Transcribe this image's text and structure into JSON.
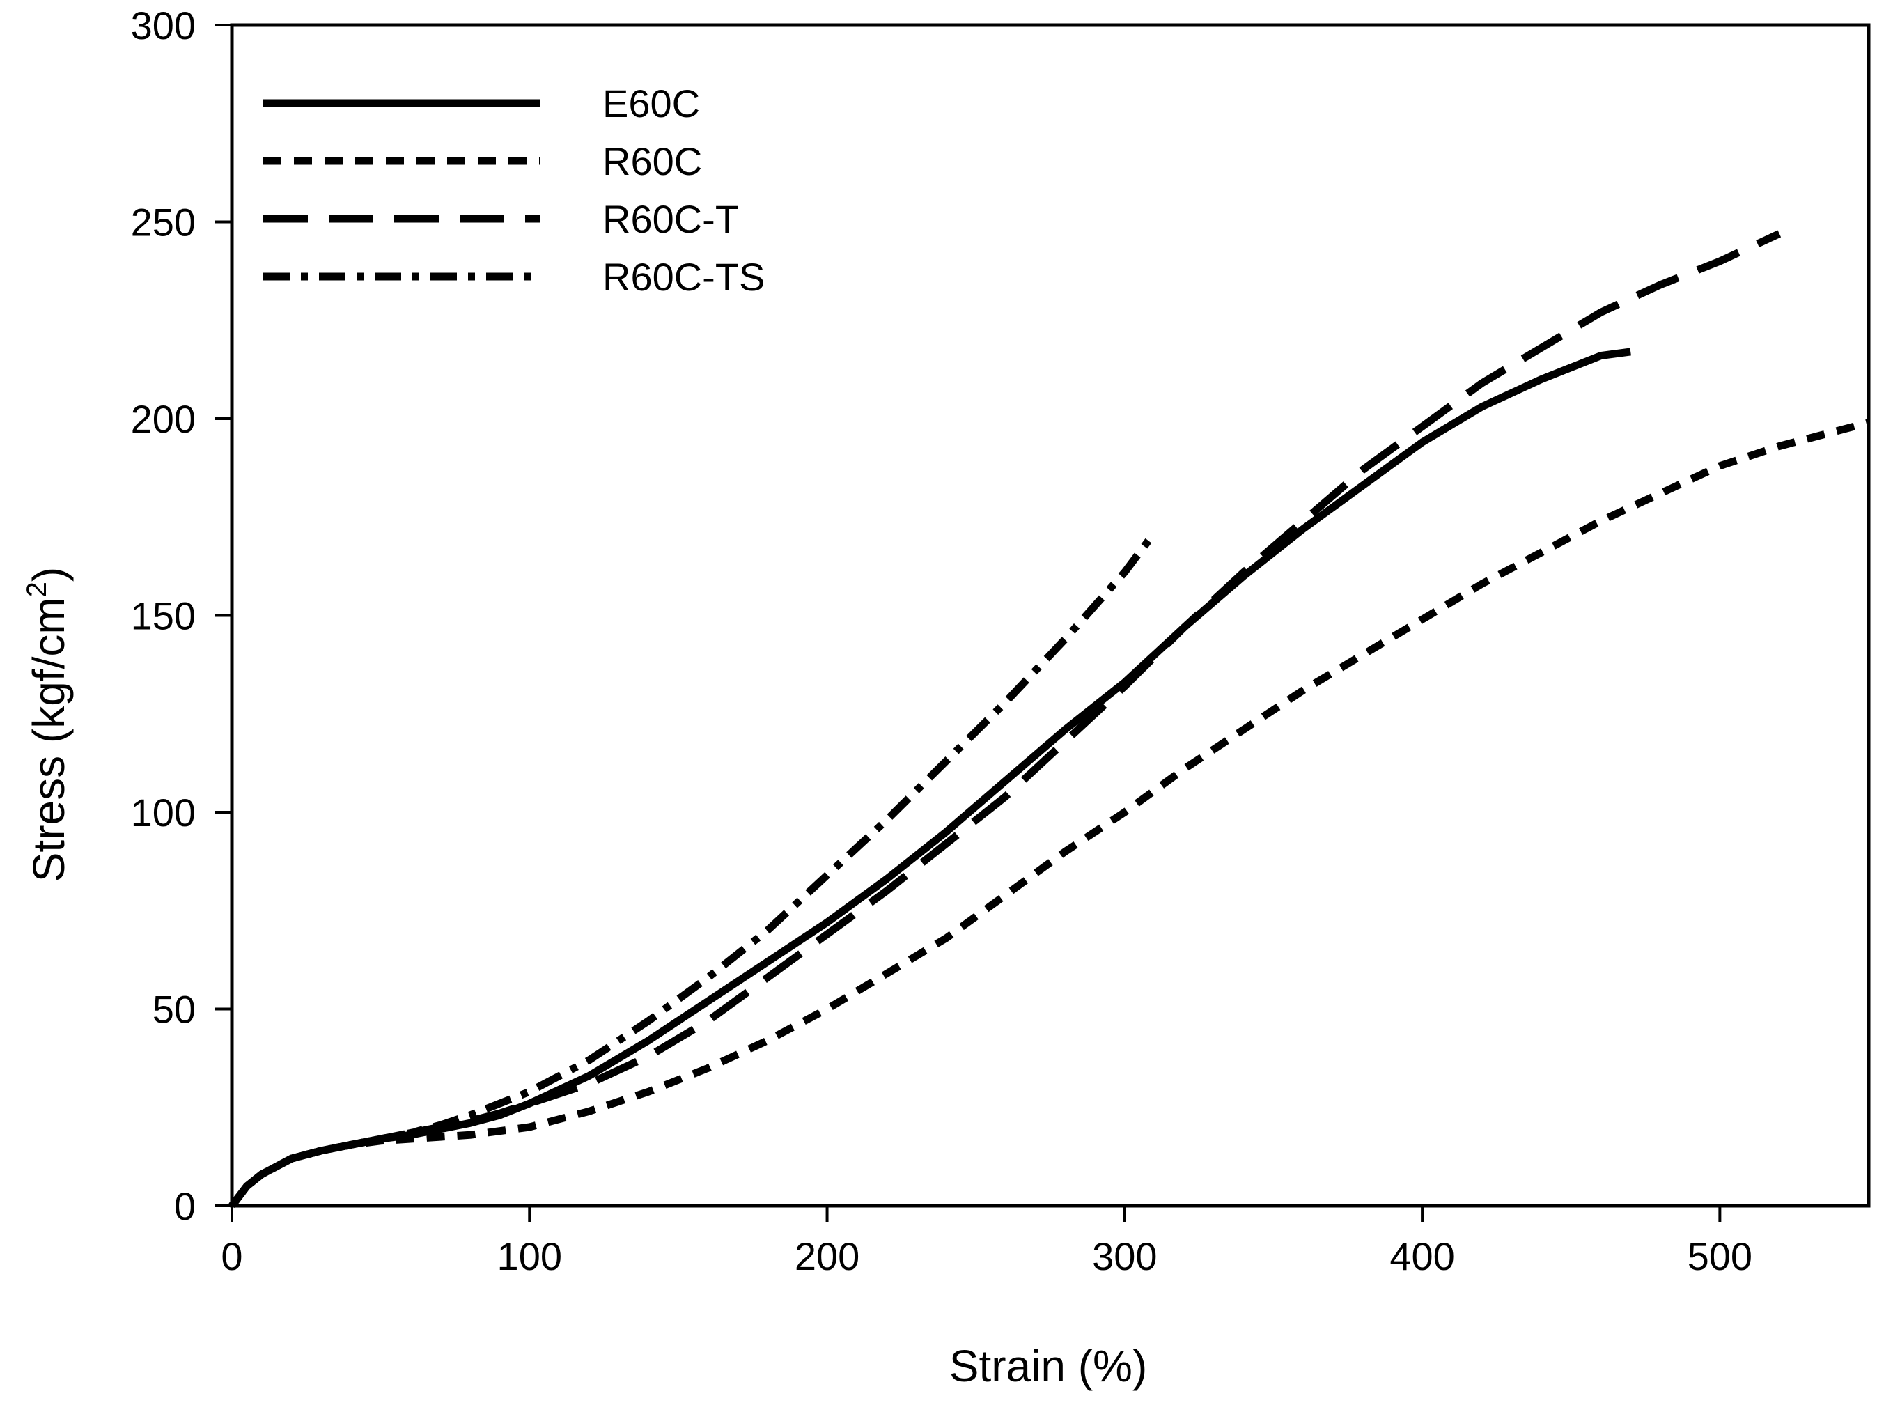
{
  "chart_data": {
    "type": "line",
    "title": "",
    "xlabel": "Strain (%)",
    "ylabel_main": "Stress (kgf/cm",
    "ylabel_sup": "2",
    "ylabel_close": ")",
    "xlim": [
      0,
      550
    ],
    "ylim": [
      0,
      300
    ],
    "xticks": [
      0,
      100,
      200,
      300,
      400,
      500
    ],
    "yticks": [
      0,
      50,
      100,
      150,
      200,
      250,
      300
    ],
    "grid": false,
    "legend_position": "top-left",
    "series": [
      {
        "name": "E60C",
        "style": "solid",
        "x": [
          0,
          5,
          10,
          20,
          30,
          40,
          50,
          60,
          70,
          80,
          90,
          100,
          120,
          140,
          160,
          180,
          200,
          220,
          240,
          260,
          280,
          300,
          320,
          340,
          360,
          380,
          400,
          420,
          440,
          460,
          470
        ],
        "y": [
          0,
          5,
          8,
          12,
          14,
          15.5,
          17,
          18,
          19.5,
          21,
          23,
          26,
          33,
          42,
          52,
          62,
          72,
          83,
          95,
          108,
          121,
          133,
          147,
          160,
          172,
          183,
          194,
          203,
          210,
          216,
          217
        ]
      },
      {
        "name": "R60C",
        "style": "short-dash",
        "x": [
          0,
          5,
          10,
          20,
          30,
          40,
          50,
          60,
          70,
          80,
          90,
          100,
          120,
          140,
          160,
          180,
          200,
          220,
          240,
          260,
          280,
          300,
          320,
          340,
          360,
          380,
          400,
          420,
          440,
          460,
          480,
          500,
          520,
          550
        ],
        "y": [
          0,
          5,
          8,
          12,
          14,
          15.5,
          16.5,
          17,
          17.5,
          18,
          19,
          20,
          24,
          29,
          35,
          42,
          50,
          59,
          68,
          79,
          90,
          100,
          111,
          121,
          131,
          140,
          149,
          158,
          166,
          174,
          181,
          188,
          193,
          199
        ]
      },
      {
        "name": "R60C-T",
        "style": "long-dash",
        "x": [
          0,
          5,
          10,
          20,
          30,
          40,
          50,
          60,
          70,
          80,
          90,
          100,
          120,
          140,
          160,
          180,
          200,
          220,
          240,
          260,
          280,
          300,
          320,
          340,
          360,
          380,
          400,
          420,
          440,
          460,
          480,
          500,
          520
        ],
        "y": [
          0,
          5,
          8,
          12,
          14,
          15.5,
          17,
          18.5,
          20,
          21.5,
          23.5,
          26,
          31,
          38,
          47,
          58,
          69,
          80,
          92,
          104,
          118,
          132,
          147,
          161,
          174,
          187,
          198,
          209,
          218,
          227,
          234,
          240,
          247
        ]
      },
      {
        "name": "R60C-TS",
        "style": "dash-dot",
        "x": [
          0,
          5,
          10,
          20,
          30,
          40,
          50,
          60,
          70,
          80,
          90,
          100,
          120,
          140,
          160,
          180,
          200,
          220,
          240,
          260,
          280,
          300,
          310
        ],
        "y": [
          0,
          5,
          8,
          12,
          14,
          15.5,
          17,
          18.5,
          20.5,
          23,
          26,
          29,
          37,
          47,
          58,
          70,
          84,
          98,
          113,
          128,
          144,
          161,
          171
        ]
      }
    ]
  }
}
